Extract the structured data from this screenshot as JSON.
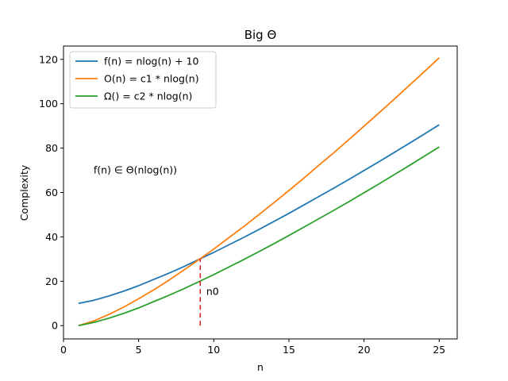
{
  "chart_data": {
    "type": "line",
    "title": "Big Θ",
    "xlabel": "n",
    "ylabel": "Complexity",
    "xlim": [
      0,
      26.2
    ],
    "ylim": [
      -6,
      126
    ],
    "xticks": [
      0,
      5,
      10,
      15,
      20,
      25
    ],
    "yticks": [
      0,
      20,
      40,
      60,
      80,
      100,
      120
    ],
    "grid": false,
    "legend_position": "upper-left",
    "series": [
      {
        "name": "f(n) = nlog(n) + 10",
        "color": "#1f77b4",
        "x": [
          1,
          2,
          3,
          4,
          5,
          6,
          7,
          8,
          9,
          10,
          11,
          12,
          13,
          14,
          15,
          16,
          17,
          18,
          19,
          20,
          21,
          22,
          23,
          24,
          25
        ],
        "y": [
          10,
          11.4,
          13.3,
          15.5,
          18.0,
          20.8,
          23.6,
          26.6,
          29.8,
          33.0,
          36.4,
          39.8,
          43.3,
          46.9,
          50.6,
          54.4,
          58.2,
          62.0,
          65.9,
          69.9,
          73.9,
          78.0,
          82.1,
          86.3,
          90.5
        ]
      },
      {
        "name": "O(n) = c1 * nlog(n)",
        "color": "#ff7f0e",
        "x": [
          1,
          2,
          3,
          4,
          5,
          6,
          7,
          8,
          9,
          10,
          11,
          12,
          13,
          14,
          15,
          16,
          17,
          18,
          19,
          20,
          21,
          22,
          23,
          24,
          25
        ],
        "y": [
          0,
          2.1,
          5.0,
          8.3,
          12.1,
          16.1,
          20.4,
          25.0,
          29.7,
          34.5,
          39.6,
          44.7,
          50.0,
          55.4,
          60.9,
          66.5,
          72.3,
          78.0,
          83.9,
          89.9,
          95.9,
          102.0,
          108.2,
          114.4,
          120.7
        ]
      },
      {
        "name": "Ω() = c2 * nlog(n)",
        "color": "#2ca02c",
        "x": [
          1,
          2,
          3,
          4,
          5,
          6,
          7,
          8,
          9,
          10,
          11,
          12,
          13,
          14,
          15,
          16,
          17,
          18,
          19,
          20,
          21,
          22,
          23,
          24,
          25
        ],
        "y": [
          0,
          1.4,
          3.3,
          5.5,
          8.0,
          10.8,
          13.6,
          16.6,
          19.8,
          23.0,
          26.4,
          29.8,
          33.3,
          36.9,
          40.6,
          44.4,
          48.2,
          52.0,
          55.9,
          59.9,
          63.9,
          68.0,
          72.1,
          76.3,
          80.5
        ]
      }
    ],
    "vline": {
      "x": 9.1,
      "y0": 0,
      "y1": 30.2,
      "color": "#d62728",
      "style": "dashed"
    },
    "annotations": [
      {
        "text": "f(n) ∈ Θ(nlog(n))",
        "x": 2.0,
        "y": 70
      },
      {
        "text": "n0",
        "x": 9.5,
        "y": 15.2
      }
    ]
  }
}
